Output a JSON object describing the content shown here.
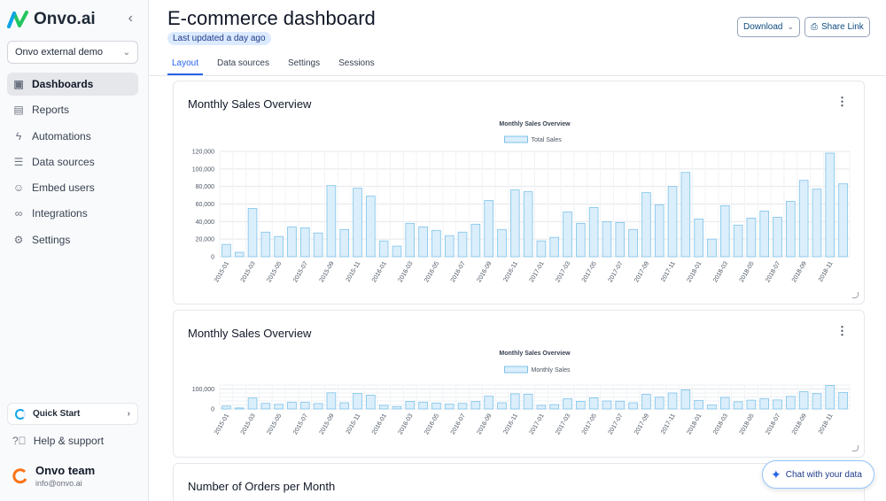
{
  "sidebar": {
    "brand": "Onvo.ai",
    "org": "Onvo external demo",
    "items": [
      {
        "label": "Dashboards",
        "icon": "dashboard-icon"
      },
      {
        "label": "Reports",
        "icon": "table-icon"
      },
      {
        "label": "Automations",
        "icon": "bolt-icon"
      },
      {
        "label": "Data sources",
        "icon": "database-icon"
      },
      {
        "label": "Embed users",
        "icon": "users-icon"
      },
      {
        "label": "Integrations",
        "icon": "link-icon"
      },
      {
        "label": "Settings",
        "icon": "gear-icon"
      }
    ],
    "quick_start": "Quick Start",
    "help": "Help & support",
    "team_name": "Onvo team",
    "team_email": "info@onvo.ai"
  },
  "header": {
    "title": "E-commerce dashboard",
    "updated": "Last updated a day ago",
    "download": "Download",
    "share": "Share Link",
    "tabs": [
      "Layout",
      "Data sources",
      "Settings",
      "Sessions"
    ]
  },
  "cards": [
    {
      "title": "Monthly Sales Overview"
    },
    {
      "title": "Monthly Sales Overview"
    },
    {
      "title": "Number of Orders per Month"
    }
  ],
  "chat": "Chat with your data",
  "colors": {
    "bar_fill": "#dbeefb",
    "bar_stroke": "#7dc3ea",
    "accent": "#2563eb"
  },
  "chart_data": [
    {
      "type": "bar",
      "title": "Monthly Sales Overview",
      "legend": "Total Sales",
      "legend_position": "top",
      "ylim": [
        0,
        120000
      ],
      "yticks": [
        "0",
        "20,000",
        "40,000",
        "60,000",
        "80,000",
        "100,000",
        "120,000"
      ],
      "grid": true,
      "x_tick_labels": [
        "2015-01",
        "2015-03",
        "2015-05",
        "2015-07",
        "2015-09",
        "2015-11",
        "2016-01",
        "2016-03",
        "2016-05",
        "2016-07",
        "2016-09",
        "2016-11",
        "2017-01",
        "2017-03",
        "2017-05",
        "2017-07",
        "2017-09",
        "2017-11",
        "2018-01",
        "2018-03",
        "2018-05",
        "2018-07",
        "2018-09",
        "2018-11"
      ],
      "categories": [
        "2015-01",
        "2015-02",
        "2015-03",
        "2015-04",
        "2015-05",
        "2015-06",
        "2015-07",
        "2015-08",
        "2015-09",
        "2015-10",
        "2015-11",
        "2015-12",
        "2016-01",
        "2016-02",
        "2016-03",
        "2016-04",
        "2016-05",
        "2016-06",
        "2016-07",
        "2016-08",
        "2016-09",
        "2016-10",
        "2016-11",
        "2016-12",
        "2017-01",
        "2017-02",
        "2017-03",
        "2017-04",
        "2017-05",
        "2017-06",
        "2017-07",
        "2017-08",
        "2017-09",
        "2017-10",
        "2017-11",
        "2017-12",
        "2018-01",
        "2018-02",
        "2018-03",
        "2018-04",
        "2018-05",
        "2018-06",
        "2018-07",
        "2018-08",
        "2018-09",
        "2018-10",
        "2018-11",
        "2018-12"
      ],
      "values": [
        14000,
        5000,
        55000,
        28000,
        23000,
        34000,
        33000,
        27000,
        81000,
        31000,
        78000,
        69000,
        18000,
        12000,
        38000,
        34000,
        30000,
        24000,
        28000,
        37000,
        64000,
        31000,
        76000,
        74000,
        18000,
        22000,
        51000,
        38000,
        56000,
        40000,
        39000,
        31000,
        73000,
        59000,
        80000,
        96000,
        43000,
        20000,
        58000,
        36000,
        44000,
        52000,
        45000,
        63000,
        87000,
        77000,
        118000,
        83000
      ]
    },
    {
      "type": "bar",
      "title": "Monthly Sales Overview",
      "legend": "Monthly Sales",
      "legend_position": "top",
      "ylim": [
        0,
        120000
      ],
      "yticks": [
        "0",
        "100,000"
      ],
      "grid": true,
      "x_tick_labels": [
        "2015-01",
        "2015-03",
        "2015-05",
        "2015-07",
        "2015-09",
        "2015-11",
        "2016-01",
        "2016-03",
        "2016-05",
        "2016-07",
        "2016-09",
        "2016-11",
        "2017-01",
        "2017-03",
        "2017-05",
        "2017-07",
        "2017-09",
        "2017-11",
        "2018-01",
        "2018-03",
        "2018-05",
        "2018-07",
        "2018-09",
        "2018-11"
      ],
      "categories": [
        "2015-01",
        "2015-02",
        "2015-03",
        "2015-04",
        "2015-05",
        "2015-06",
        "2015-07",
        "2015-08",
        "2015-09",
        "2015-10",
        "2015-11",
        "2015-12",
        "2016-01",
        "2016-02",
        "2016-03",
        "2016-04",
        "2016-05",
        "2016-06",
        "2016-07",
        "2016-08",
        "2016-09",
        "2016-10",
        "2016-11",
        "2016-12",
        "2017-01",
        "2017-02",
        "2017-03",
        "2017-04",
        "2017-05",
        "2017-06",
        "2017-07",
        "2017-08",
        "2017-09",
        "2017-10",
        "2017-11",
        "2017-12",
        "2018-01",
        "2018-02",
        "2018-03",
        "2018-04",
        "2018-05",
        "2018-06",
        "2018-07",
        "2018-08",
        "2018-09",
        "2018-10",
        "2018-11",
        "2018-12"
      ],
      "values": [
        14000,
        5000,
        55000,
        28000,
        23000,
        34000,
        33000,
        27000,
        81000,
        31000,
        78000,
        69000,
        18000,
        12000,
        38000,
        34000,
        30000,
        24000,
        28000,
        37000,
        64000,
        31000,
        76000,
        74000,
        18000,
        22000,
        51000,
        38000,
        56000,
        40000,
        39000,
        31000,
        73000,
        59000,
        80000,
        96000,
        43000,
        20000,
        58000,
        36000,
        44000,
        52000,
        45000,
        63000,
        87000,
        77000,
        118000,
        83000
      ]
    }
  ]
}
